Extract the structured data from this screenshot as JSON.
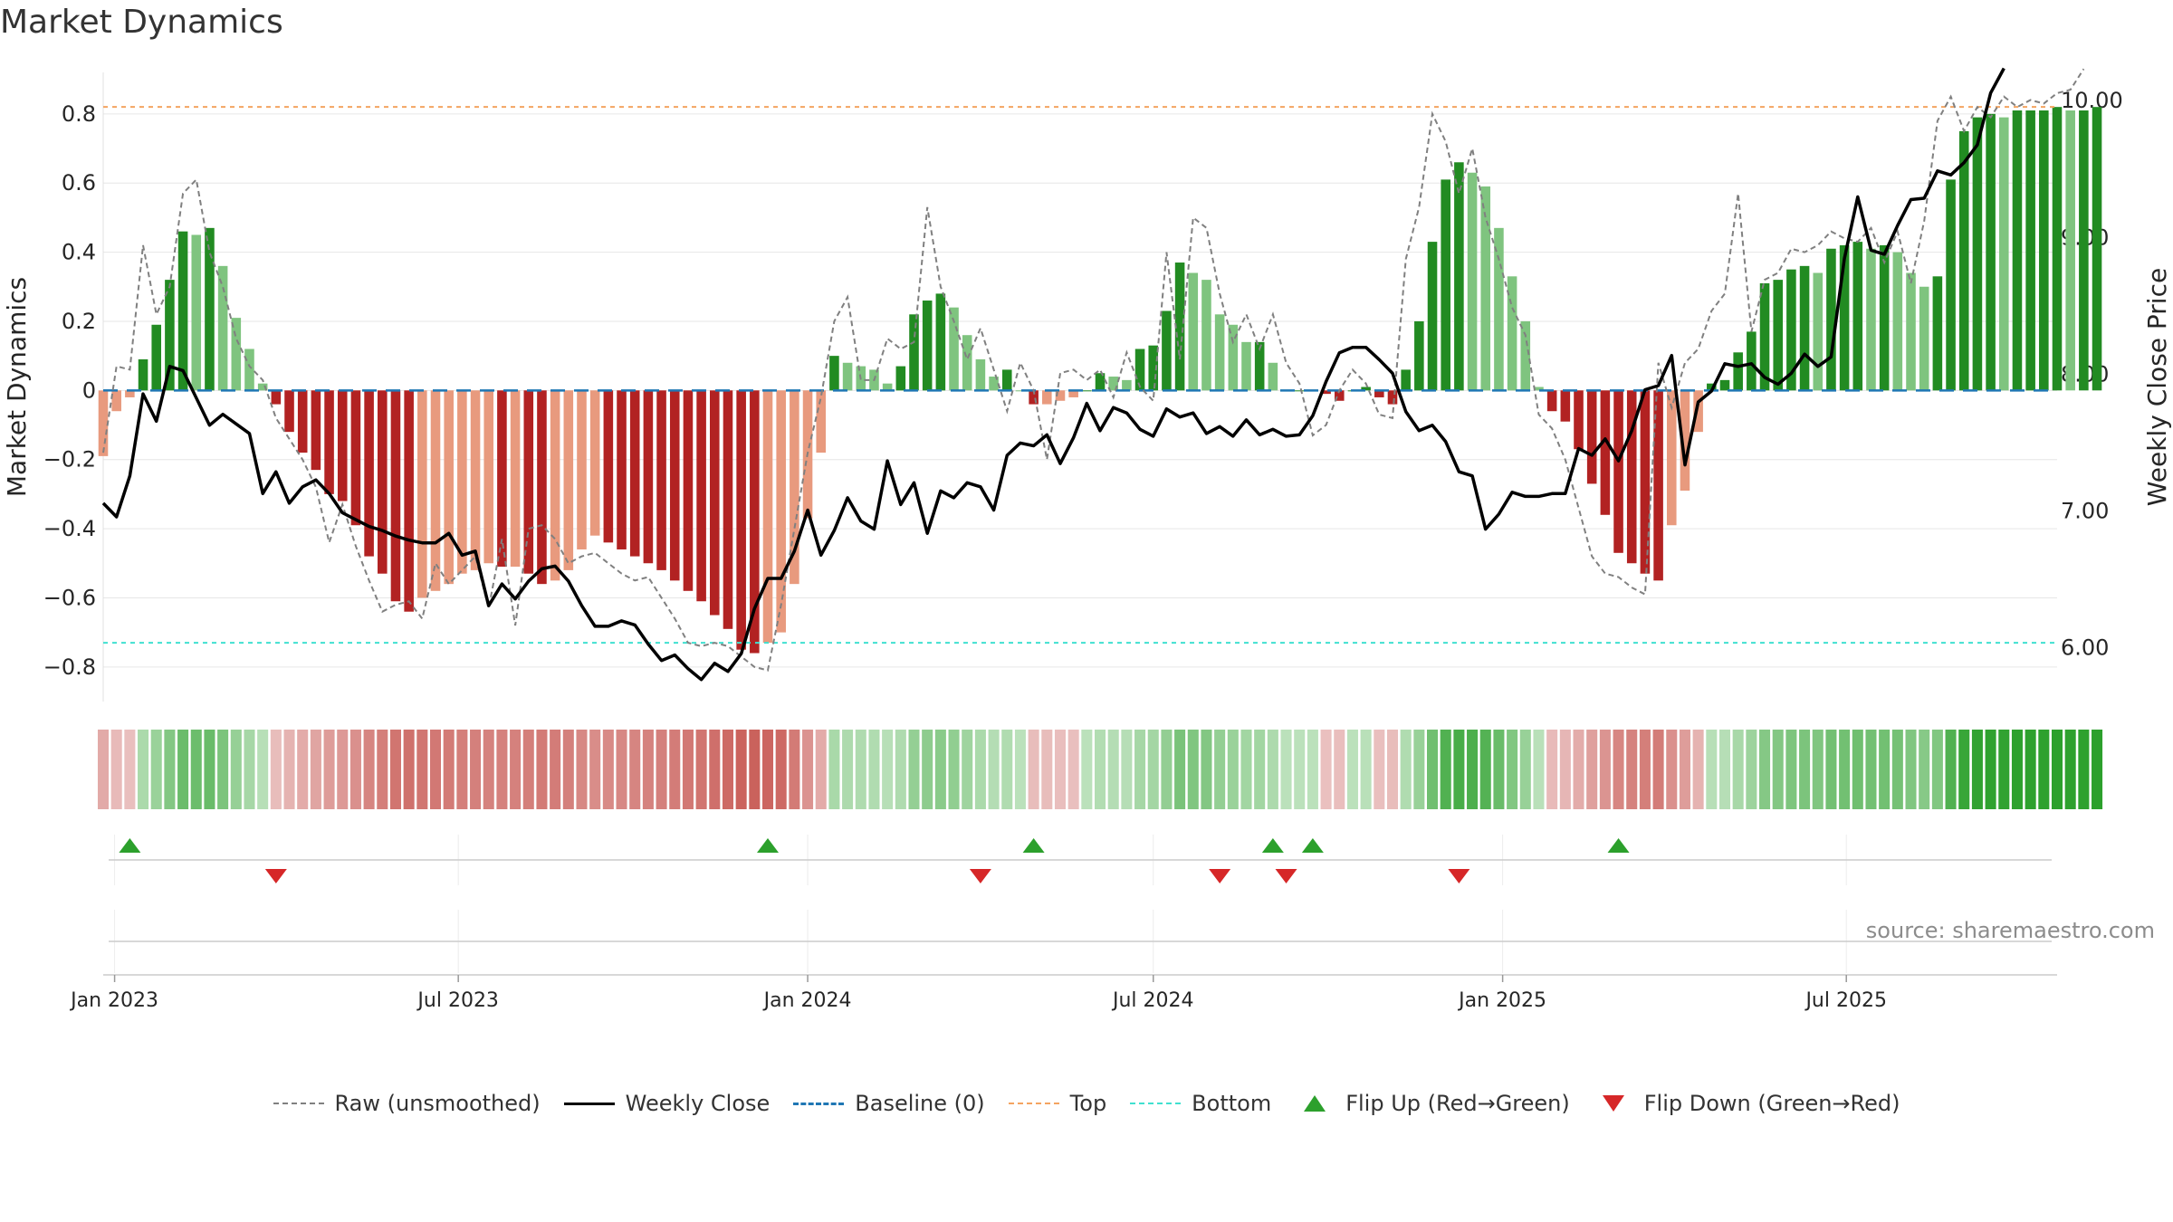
{
  "title": "Market Dynamics",
  "source_label": "source: sharemaestro.com",
  "colors": {
    "green_dark": "#228b22",
    "green_light": "#7fc47f",
    "red_dark": "#b22222",
    "red_light": "#e89a7e",
    "top_line": "#f4a460",
    "bottom_line": "#40e0d0",
    "baseline": "#1f77b4",
    "raw": "#808080",
    "close": "#000000",
    "flip_up": "#2ca02c",
    "flip_down": "#d62728"
  },
  "chart_data": {
    "type": "bar",
    "title": "Market Dynamics",
    "ylabel_left": "Market Dynamics",
    "ylabel_right": "Weekly Close Price",
    "ylim_left": [
      -0.9,
      0.92
    ],
    "ylim_right": [
      5.6,
      10.2
    ],
    "yticks_left": [
      -0.8,
      -0.6,
      -0.4,
      -0.2,
      0,
      0.2,
      0.4,
      0.6,
      0.8
    ],
    "yticks_left_labels": [
      "−0.8",
      "−0.6",
      "−0.4",
      "−0.2",
      "0",
      "0.2",
      "0.4",
      "0.6",
      "0.8"
    ],
    "yticks_right": [
      6.0,
      7.0,
      8.0,
      9.0,
      10.0
    ],
    "yticks_right_labels": [
      "6.00",
      "7.00",
      "8.00",
      "9.00",
      "10.00"
    ],
    "x_start": "2022-12-26",
    "x_end": "2025-10-20",
    "xticks": [
      {
        "date": "2023-01-01",
        "label": "Jan 2023"
      },
      {
        "date": "2023-07-01",
        "label": "Jul 2023"
      },
      {
        "date": "2024-01-01",
        "label": "Jan 2024"
      },
      {
        "date": "2024-07-01",
        "label": "Jul 2024"
      },
      {
        "date": "2025-01-01",
        "label": "Jan 2025"
      },
      {
        "date": "2025-07-01",
        "label": "Jul 2025"
      }
    ],
    "first_week": "2022-12-26",
    "top_level": 0.82,
    "bottom_level": -0.73,
    "baseline_level": 0,
    "dynamics": [
      -0.19,
      -0.06,
      -0.02,
      0.09,
      0.19,
      0.32,
      0.46,
      0.45,
      0.47,
      0.36,
      0.21,
      0.12,
      0.02,
      -0.04,
      -0.12,
      -0.18,
      -0.23,
      -0.3,
      -0.32,
      -0.39,
      -0.48,
      -0.53,
      -0.61,
      -0.64,
      -0.6,
      -0.58,
      -0.56,
      -0.53,
      -0.52,
      -0.5,
      -0.51,
      -0.51,
      -0.53,
      -0.56,
      -0.55,
      -0.52,
      -0.46,
      -0.42,
      -0.44,
      -0.46,
      -0.48,
      -0.5,
      -0.52,
      -0.55,
      -0.58,
      -0.61,
      -0.65,
      -0.69,
      -0.75,
      -0.76,
      -0.73,
      -0.7,
      -0.56,
      -0.37,
      -0.18,
      0.1,
      0.08,
      0.07,
      0.06,
      0.02,
      0.07,
      0.22,
      0.26,
      0.28,
      0.24,
      0.16,
      0.09,
      0.04,
      0.06,
      0.0,
      -0.04,
      -0.04,
      -0.03,
      -0.02,
      0.0,
      0.05,
      0.04,
      0.03,
      0.12,
      0.13,
      0.23,
      0.37,
      0.34,
      0.32,
      0.22,
      0.19,
      0.14,
      0.14,
      0.08,
      0.0,
      0.0,
      0.0,
      -0.01,
      -0.03,
      0.0,
      0.01,
      -0.02,
      -0.04,
      0.06,
      0.2,
      0.43,
      0.61,
      0.66,
      0.63,
      0.59,
      0.47,
      0.33,
      0.2,
      0.01,
      -0.06,
      -0.09,
      -0.17,
      -0.27,
      -0.36,
      -0.47,
      -0.5,
      -0.53,
      -0.55,
      -0.39,
      -0.29,
      -0.12,
      0.02,
      0.03,
      0.11,
      0.17,
      0.31,
      0.32,
      0.35,
      0.36,
      0.34,
      0.41,
      0.42,
      0.43,
      0.41,
      0.42,
      0.4,
      0.34,
      0.3,
      0.33,
      0.61,
      0.75,
      0.79,
      0.8,
      0.79,
      0.81,
      0.81,
      0.81,
      0.82,
      0.81,
      0.81,
      0.82
    ],
    "raw": [
      -0.18,
      0.07,
      0.06,
      0.42,
      0.22,
      0.3,
      0.57,
      0.61,
      0.4,
      0.3,
      0.15,
      0.07,
      0.03,
      -0.08,
      -0.14,
      -0.2,
      -0.28,
      -0.44,
      -0.33,
      -0.45,
      -0.55,
      -0.64,
      -0.62,
      -0.61,
      -0.66,
      -0.5,
      -0.56,
      -0.52,
      -0.48,
      -0.63,
      -0.43,
      -0.68,
      -0.4,
      -0.39,
      -0.43,
      -0.5,
      -0.48,
      -0.47,
      -0.5,
      -0.53,
      -0.55,
      -0.54,
      -0.6,
      -0.66,
      -0.73,
      -0.74,
      -0.73,
      -0.74,
      -0.77,
      -0.8,
      -0.81,
      -0.62,
      -0.4,
      -0.18,
      -0.02,
      0.2,
      0.27,
      0.03,
      0.03,
      0.15,
      0.12,
      0.14,
      0.53,
      0.3,
      0.2,
      0.09,
      0.18,
      0.06,
      -0.06,
      0.08,
      0.0,
      -0.2,
      0.05,
      0.06,
      0.03,
      0.06,
      -0.02,
      0.11,
      0.01,
      -0.03,
      0.4,
      0.09,
      0.5,
      0.47,
      0.28,
      0.14,
      0.22,
      0.12,
      0.22,
      0.08,
      0.02,
      -0.13,
      -0.1,
      0.0,
      0.06,
      0.02,
      -0.07,
      -0.08,
      0.38,
      0.53,
      0.8,
      0.72,
      0.57,
      0.7,
      0.5,
      0.38,
      0.24,
      0.16,
      -0.07,
      -0.11,
      -0.2,
      -0.34,
      -0.48,
      -0.53,
      -0.54,
      -0.57,
      -0.59,
      0.08,
      -0.05,
      0.08,
      0.12,
      0.23,
      0.28,
      0.57,
      0.17,
      0.32,
      0.34,
      0.41,
      0.4,
      0.42,
      0.46,
      0.44,
      0.43,
      0.47,
      0.37,
      0.46,
      0.31,
      0.49,
      0.78,
      0.85,
      0.75,
      0.82,
      0.79,
      0.85,
      0.82,
      0.84,
      0.83,
      0.86,
      0.87,
      0.93
    ],
    "close": [
      7.05,
      6.95,
      7.25,
      7.85,
      7.65,
      8.05,
      8.02,
      7.82,
      7.62,
      7.7,
      7.63,
      7.56,
      7.12,
      7.28,
      7.05,
      7.17,
      7.22,
      7.12,
      6.98,
      6.93,
      6.88,
      6.85,
      6.81,
      6.78,
      6.76,
      6.76,
      6.83,
      6.67,
      6.7,
      6.3,
      6.46,
      6.35,
      6.48,
      6.57,
      6.59,
      6.48,
      6.3,
      6.15,
      6.15,
      6.19,
      6.16,
      6.02,
      5.9,
      5.94,
      5.84,
      5.76,
      5.88,
      5.82,
      5.95,
      6.28,
      6.5,
      6.5,
      6.7,
      7.0,
      6.67,
      6.85,
      7.09,
      6.92,
      6.86,
      7.36,
      7.04,
      7.2,
      6.83,
      7.14,
      7.09,
      7.2,
      7.17,
      7.0,
      7.4,
      7.49,
      7.47,
      7.55,
      7.34,
      7.53,
      7.78,
      7.58,
      7.75,
      7.71,
      7.59,
      7.54,
      7.74,
      7.68,
      7.71,
      7.56,
      7.61,
      7.54,
      7.66,
      7.55,
      7.59,
      7.54,
      7.55,
      7.69,
      7.94,
      8.15,
      8.19,
      8.19,
      8.1,
      8.0,
      7.72,
      7.58,
      7.62,
      7.5,
      7.28,
      7.25,
      6.86,
      6.97,
      7.13,
      7.1,
      7.1,
      7.12,
      7.12,
      7.45,
      7.4,
      7.52,
      7.36,
      7.58,
      7.88,
      7.91,
      8.13,
      7.33,
      7.79,
      7.87,
      8.07,
      8.05,
      8.07,
      7.97,
      7.92,
      8.0,
      8.14,
      8.05,
      8.12,
      8.84,
      9.29,
      8.9,
      8.87,
      9.08,
      9.27,
      9.28,
      9.48,
      9.45,
      9.54,
      9.67,
      10.05,
      10.23
    ],
    "flip_up_weeks": [
      2,
      50,
      70,
      88,
      91,
      114
    ],
    "flip_down_weeks": [
      13,
      66,
      84,
      89,
      102
    ],
    "legend": [
      {
        "key": "raw",
        "label": "Raw (unsmoothed)"
      },
      {
        "key": "close",
        "label": "Weekly Close"
      },
      {
        "key": "baseline",
        "label": "Baseline (0)"
      },
      {
        "key": "top",
        "label": "Top"
      },
      {
        "key": "bottom",
        "label": "Bottom"
      },
      {
        "key": "flip_up",
        "label": "Flip Up (Red→Green)"
      },
      {
        "key": "flip_down",
        "label": "Flip Down (Green→Red)"
      }
    ]
  }
}
